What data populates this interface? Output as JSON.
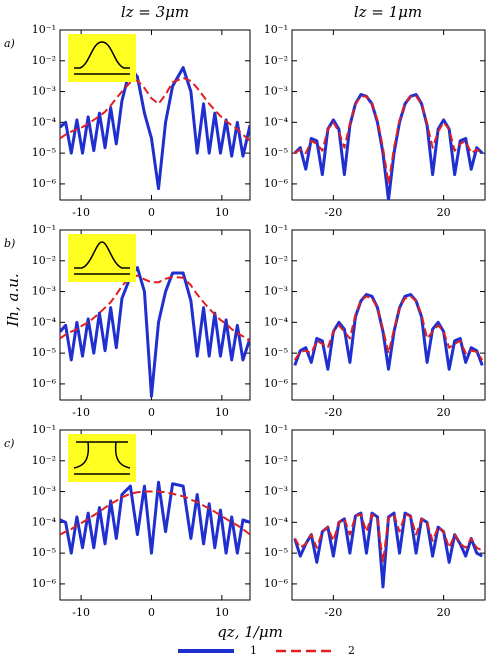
{
  "column_titles": [
    "lz = 3μm",
    "lz = 1μm"
  ],
  "y_label": "Ih, a.u.",
  "x_label": "qz, 1/μm",
  "legend": [
    {
      "name": "1",
      "color": "#1f2fd0",
      "dash": false
    },
    {
      "name": "2",
      "color": "#e02020",
      "dash": true
    }
  ],
  "chart_data": [
    {
      "type": "line",
      "panel_label": "a)",
      "log_y": true,
      "xlim": [
        -13,
        14
      ],
      "xticks": [
        -10,
        0,
        10
      ],
      "ylim": [
        3e-07,
        0.1
      ],
      "yticks": [
        {
          "value": 1e-06,
          "label": "10⁻⁶"
        },
        {
          "value": 1e-05,
          "label": "10⁻⁵"
        },
        {
          "value": 0.0001,
          "label": "10⁻⁴"
        },
        {
          "value": 0.001,
          "label": "10⁻³"
        },
        {
          "value": 0.01,
          "label": "10⁻²"
        },
        {
          "value": 0.1,
          "label": "10⁻¹"
        }
      ],
      "x": [
        -13,
        -12.2,
        -11.4,
        -10.6,
        -9.8,
        -9,
        -8.2,
        -7.4,
        -6.6,
        -5.8,
        -5,
        -4.2,
        -3,
        -2,
        -1,
        0,
        1,
        2,
        3,
        4.5,
        5.6,
        6.5,
        7.4,
        8.2,
        9,
        9.8,
        10.6,
        11.4,
        12.2,
        13,
        14
      ],
      "series": [
        {
          "color": "#1f2fd0",
          "values": [
            7e-05,
            0.0001,
            1e-05,
            0.00012,
            1e-05,
            0.00015,
            1.2e-05,
            0.0002,
            1.5e-05,
            0.0003,
            2e-05,
            0.0005,
            0.006,
            0.003,
            0.0002,
            3e-05,
            7e-07,
            0.0001,
            0.0015,
            0.006,
            0.001,
            1e-05,
            0.0004,
            1e-05,
            0.0002,
            1e-05,
            0.00012,
            8e-06,
            0.0001,
            8e-06,
            8e-05
          ]
        },
        {
          "color": "#e02020",
          "dash": true,
          "values": [
            3e-05,
            4e-05,
            5e-05,
            6e-05,
            7e-05,
            9e-05,
            0.00012,
            0.00016,
            0.00022,
            0.00035,
            0.0006,
            0.001,
            0.002,
            0.0023,
            0.0013,
            0.0006,
            0.0004,
            0.0008,
            0.002,
            0.0028,
            0.0022,
            0.0013,
            0.0007,
            0.0004,
            0.00025,
            0.00016,
            0.00011,
            8e-05,
            6e-05,
            4e-05,
            2.5e-05
          ]
        }
      ]
    },
    {
      "type": "line",
      "log_y": true,
      "xlim": [
        -35,
        35
      ],
      "xticks": [
        -20,
        20
      ],
      "ylim": [
        3e-07,
        0.1
      ],
      "yticks": [
        {
          "value": 1e-06,
          "label": "10⁻⁶"
        },
        {
          "value": 1e-05,
          "label": "10⁻⁵"
        },
        {
          "value": 0.0001,
          "label": "10⁻⁴"
        },
        {
          "value": 0.001,
          "label": "10⁻³"
        },
        {
          "value": 0.01,
          "label": "10⁻²"
        },
        {
          "value": 0.1,
          "label": "10⁻¹"
        }
      ],
      "x": [
        -34,
        -32,
        -30,
        -28,
        -26,
        -24,
        -22,
        -20,
        -18,
        -16,
        -14,
        -12,
        -10,
        -8,
        -6,
        -4,
        -2,
        0,
        2,
        4,
        6,
        8,
        10,
        12,
        14,
        16,
        18,
        20,
        22,
        24,
        26,
        28,
        30,
        32,
        34
      ],
      "series": [
        {
          "color": "#1f2fd0",
          "values": [
            1e-05,
            1.5e-05,
            3e-06,
            3e-05,
            2.5e-05,
            2e-06,
            6e-05,
            0.00012,
            6e-05,
            2e-06,
            8e-05,
            0.0004,
            0.0008,
            0.0007,
            0.0004,
            0.0001,
            1e-05,
            3e-07,
            1e-05,
            0.0001,
            0.0004,
            0.0007,
            0.0008,
            0.0004,
            8e-05,
            2e-06,
            6e-05,
            0.00012,
            6e-05,
            2e-06,
            2.5e-05,
            3e-05,
            3e-06,
            1.5e-05,
            1e-05
          ]
        },
        {
          "color": "#e02020",
          "dash": true,
          "values": [
            1e-05,
            1.3e-05,
            1e-05,
            2.5e-05,
            2e-05,
            1.2e-05,
            6e-05,
            0.0001,
            5e-05,
            1.5e-05,
            9e-05,
            0.0004,
            0.0007,
            0.0007,
            0.0004,
            0.00012,
            1.5e-05,
            1e-06,
            1.5e-05,
            0.00012,
            0.0004,
            0.0007,
            0.0007,
            0.0004,
            9e-05,
            1.5e-05,
            5e-05,
            0.0001,
            6e-05,
            1.2e-05,
            2e-05,
            2.5e-05,
            1e-05,
            1.3e-05,
            1e-05
          ]
        }
      ]
    },
    {
      "type": "line",
      "panel_label": "b)",
      "log_y": true,
      "xlim": [
        -13,
        14
      ],
      "xticks": [
        -10,
        0,
        10
      ],
      "ylim": [
        3e-07,
        0.1
      ],
      "yticks": [
        {
          "value": 1e-06,
          "label": "10⁻⁶"
        },
        {
          "value": 1e-05,
          "label": "10⁻⁵"
        },
        {
          "value": 0.0001,
          "label": "10⁻⁴"
        },
        {
          "value": 0.001,
          "label": "10⁻³"
        },
        {
          "value": 0.01,
          "label": "10⁻²"
        },
        {
          "value": 0.1,
          "label": "10⁻¹"
        }
      ],
      "x": [
        -13,
        -12.2,
        -11.4,
        -10.6,
        -9.8,
        -9,
        -8.2,
        -7.4,
        -6.6,
        -5.8,
        -5,
        -4.2,
        -3,
        -2,
        -1,
        0,
        1,
        2,
        3,
        4.5,
        5.6,
        6.5,
        7.4,
        8.2,
        9,
        9.8,
        10.6,
        11.4,
        12.2,
        13,
        14
      ],
      "series": [
        {
          "color": "#1f2fd0",
          "values": [
            5e-05,
            8e-05,
            6e-06,
            0.0001,
            8e-06,
            0.00013,
            1e-05,
            0.0002,
            1.2e-05,
            0.0003,
            1.5e-05,
            0.0006,
            0.003,
            0.006,
            0.001,
            4e-07,
            0.0001,
            0.001,
            0.004,
            0.004,
            0.0005,
            8e-06,
            0.0003,
            8e-06,
            0.0002,
            8e-06,
            0.00012,
            6e-06,
            8e-05,
            6e-06,
            3e-05
          ]
        },
        {
          "color": "#e02020",
          "dash": true,
          "values": [
            3e-05,
            4e-05,
            5e-05,
            6e-05,
            8e-05,
            0.0001,
            0.00014,
            0.0002,
            0.0003,
            0.00045,
            0.0008,
            0.0015,
            0.003,
            0.0033,
            0.0025,
            0.002,
            0.002,
            0.0026,
            0.003,
            0.0028,
            0.0016,
            0.0008,
            0.00045,
            0.00028,
            0.00018,
            0.00012,
            9e-05,
            6e-05,
            4.5e-05,
            3.5e-05,
            2.5e-05
          ]
        }
      ]
    },
    {
      "type": "line",
      "log_y": true,
      "xlim": [
        -35,
        35
      ],
      "xticks": [
        -20,
        20
      ],
      "ylim": [
        3e-07,
        0.1
      ],
      "yticks": [
        {
          "value": 1e-06,
          "label": "10⁻⁶"
        },
        {
          "value": 1e-05,
          "label": "10⁻⁵"
        },
        {
          "value": 0.0001,
          "label": "10⁻⁴"
        },
        {
          "value": 0.001,
          "label": "10⁻³"
        },
        {
          "value": 0.01,
          "label": "10⁻²"
        },
        {
          "value": 0.1,
          "label": "10⁻¹"
        }
      ],
      "x": [
        -34,
        -32,
        -30,
        -28,
        -26,
        -24,
        -22,
        -20,
        -18,
        -16,
        -14,
        -12,
        -10,
        -8,
        -6,
        -4,
        -2,
        0,
        2,
        4,
        6,
        8,
        10,
        12,
        14,
        16,
        18,
        20,
        22,
        24,
        26,
        28,
        30,
        32,
        34
      ],
      "series": [
        {
          "color": "#1f2fd0",
          "values": [
            4e-06,
            1.2e-05,
            1.5e-05,
            5e-06,
            3e-05,
            2.5e-05,
            3e-06,
            5e-05,
            0.0001,
            6e-05,
            5e-06,
            0.00015,
            0.0005,
            0.0008,
            0.0007,
            0.0003,
            5e-05,
            3e-06,
            5e-05,
            0.0003,
            0.0007,
            0.0008,
            0.0005,
            0.00015,
            5e-06,
            6e-05,
            0.0001,
            5e-05,
            3e-06,
            2.5e-05,
            3e-05,
            5e-06,
            1.5e-05,
            1.2e-05,
            4e-06
          ]
        },
        {
          "color": "#e02020",
          "dash": true,
          "values": [
            6e-06,
            1.1e-05,
            1.2e-05,
            1e-05,
            2.5e-05,
            2e-05,
            1.5e-05,
            5e-05,
            8e-05,
            5e-05,
            3e-05,
            0.00018,
            0.0005,
            0.0007,
            0.0006,
            0.0003,
            6e-05,
            1e-05,
            6e-05,
            0.0003,
            0.0006,
            0.0007,
            0.0005,
            0.00018,
            3e-05,
            5e-05,
            8e-05,
            5e-05,
            1.5e-05,
            2e-05,
            2.5e-05,
            1e-05,
            1.2e-05,
            1.1e-05,
            6e-06
          ]
        }
      ]
    },
    {
      "type": "line",
      "panel_label": "c)",
      "log_y": true,
      "xlim": [
        -13,
        14
      ],
      "xticks": [
        -10,
        0,
        10
      ],
      "ylim": [
        3e-07,
        0.1
      ],
      "yticks": [
        {
          "value": 1e-06,
          "label": "10⁻⁶"
        },
        {
          "value": 1e-05,
          "label": "10⁻⁵"
        },
        {
          "value": 0.0001,
          "label": "10⁻⁴"
        },
        {
          "value": 0.001,
          "label": "10⁻³"
        },
        {
          "value": 0.01,
          "label": "10⁻²"
        },
        {
          "value": 0.1,
          "label": "10⁻¹"
        }
      ],
      "x": [
        -13,
        -12.2,
        -11.4,
        -10.6,
        -9.8,
        -9,
        -8.2,
        -7.4,
        -6.6,
        -5.8,
        -5,
        -4.2,
        -3,
        -2,
        -1,
        0,
        1,
        2,
        3,
        4.5,
        5.6,
        6.5,
        7.4,
        8.2,
        9,
        9.8,
        10.6,
        11.4,
        12.2,
        13,
        14
      ],
      "series": [
        {
          "color": "#1f2fd0",
          "values": [
            0.00012,
            0.0001,
            1e-05,
            0.00015,
            1.5e-05,
            0.0002,
            1.5e-05,
            0.0003,
            2e-05,
            0.0005,
            3e-05,
            0.0008,
            0.0015,
            4e-05,
            0.0015,
            1e-05,
            0.002,
            5e-05,
            0.0018,
            0.0015,
            3e-05,
            0.0008,
            2e-05,
            0.0004,
            1.5e-05,
            0.00025,
            1e-05,
            0.00015,
            1e-05,
            0.00012,
            0.0001
          ]
        },
        {
          "color": "#e02020",
          "dash": true,
          "values": [
            4e-05,
            5e-05,
            6e-05,
            8e-05,
            0.0001,
            0.00013,
            0.00017,
            0.00022,
            0.0003,
            0.0004,
            0.0005,
            0.00065,
            0.00085,
            0.00095,
            0.001,
            0.001,
            0.001,
            0.00095,
            0.00085,
            0.0007,
            0.00055,
            0.00045,
            0.00035,
            0.00028,
            0.00022,
            0.00017,
            0.00013,
            0.0001,
            8e-05,
            6e-05,
            4e-05
          ]
        }
      ]
    },
    {
      "type": "line",
      "log_y": true,
      "xlim": [
        -35,
        35
      ],
      "xticks": [
        -20,
        20
      ],
      "ylim": [
        3e-07,
        0.1
      ],
      "yticks": [
        {
          "value": 1e-06,
          "label": "10⁻⁶"
        },
        {
          "value": 1e-05,
          "label": "10⁻⁵"
        },
        {
          "value": 0.0001,
          "label": "10⁻⁴"
        },
        {
          "value": 0.001,
          "label": "10⁻³"
        },
        {
          "value": 0.01,
          "label": "10⁻²"
        },
        {
          "value": 0.1,
          "label": "10⁻¹"
        }
      ],
      "x": [
        -34,
        -32,
        -30,
        -28,
        -26,
        -24,
        -22,
        -20,
        -18,
        -16,
        -14,
        -12,
        -10,
        -8,
        -6,
        -4,
        -2,
        0,
        2,
        4,
        6,
        8,
        10,
        12,
        14,
        16,
        18,
        20,
        22,
        24,
        26,
        28,
        30,
        32,
        34
      ],
      "series": [
        {
          "color": "#1f2fd0",
          "values": [
            3e-05,
            8e-06,
            2e-05,
            4e-05,
            5e-06,
            5e-05,
            7e-05,
            8e-06,
            0.0001,
            0.00013,
            1e-05,
            0.00016,
            0.0002,
            1e-05,
            0.0002,
            0.00015,
            8e-07,
            0.00015,
            0.0002,
            1e-05,
            0.0002,
            0.00016,
            1e-05,
            0.00013,
            0.0001,
            8e-06,
            7e-05,
            5e-05,
            5e-06,
            4e-05,
            2e-05,
            8e-06,
            3e-05,
            1e-05,
            8e-06
          ]
        },
        {
          "color": "#e02020",
          "dash": true,
          "values": [
            3e-05,
            1.5e-05,
            2e-05,
            4e-05,
            1.5e-05,
            5e-05,
            7e-05,
            2.5e-05,
            0.0001,
            0.00013,
            4e-05,
            0.00016,
            0.00018,
            5e-05,
            0.00018,
            0.00014,
            5e-06,
            0.00014,
            0.00018,
            5e-05,
            0.00018,
            0.00016,
            4e-05,
            0.00013,
            0.0001,
            2.5e-05,
            7e-05,
            5e-05,
            1.5e-05,
            4e-05,
            2e-05,
            1.5e-05,
            3e-05,
            1.5e-05,
            1.2e-05
          ]
        }
      ]
    }
  ]
}
